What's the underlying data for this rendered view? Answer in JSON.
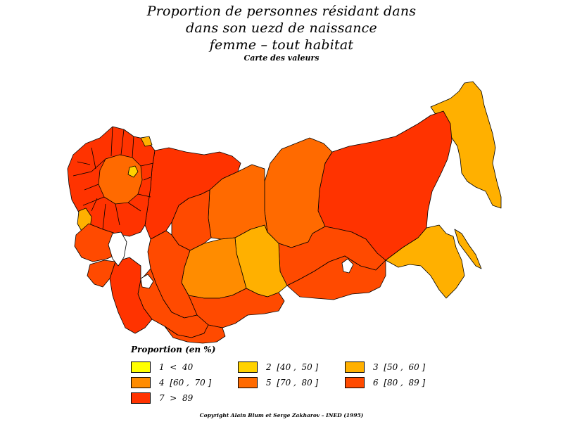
{
  "title": {
    "line1": "Proportion de personnes résidant dans",
    "line2": "dans son uezd de naissance",
    "line3": "femme  –  tout habitat",
    "subtitle": "Carte des valeurs"
  },
  "colors": {
    "class1": "#ffff00",
    "class2": "#ffd200",
    "class3": "#ffb000",
    "class4": "#ff8c00",
    "class5": "#ff6a00",
    "class6": "#ff4a00",
    "class7": "#ff3300",
    "border": "#000000"
  },
  "legend": {
    "title": "Proportion (en %)",
    "items": [
      {
        "label": "1  <  40",
        "color": "#ffff00"
      },
      {
        "label": "2  [40 ,  50 ]",
        "color": "#ffd200"
      },
      {
        "label": "3  [50 ,  60 ]",
        "color": "#ffb000"
      },
      {
        "label": "4  [60 ,  70 ]",
        "color": "#ff8c00"
      },
      {
        "label": "5  [70 ,  80 ]",
        "color": "#ff6a00"
      },
      {
        "label": "6  [80 ,  89 ]",
        "color": "#ff4a00"
      },
      {
        "label": "7  >  89",
        "color": "#ff3300"
      }
    ]
  },
  "copyright": "Copyright Alain Blum et Serge Zakharov  –  INED (1995)"
}
